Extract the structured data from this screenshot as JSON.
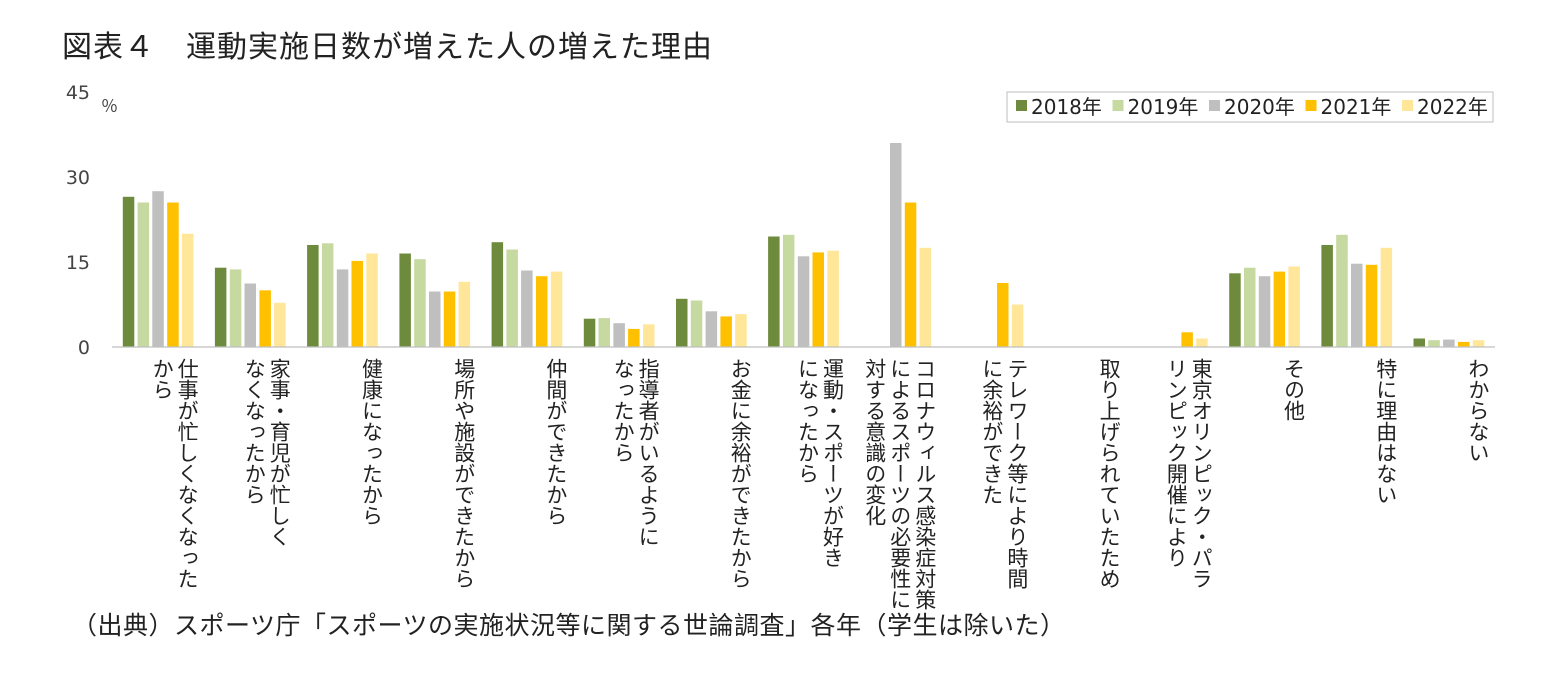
{
  "title": "図表４　運動実施日数が増えた人の増えた理由",
  "source": "（出典）スポーツ庁「スポーツの実施状況等に関する世論調査」各年（学生は除いた）",
  "chart_data": {
    "type": "bar",
    "unit": "％",
    "ylim": [
      0,
      45
    ],
    "yticks": [
      "0",
      "15",
      "30",
      "45"
    ],
    "grid": false,
    "legend_position": "top-right",
    "categories": [
      [
        "仕事が忙しくなくなった",
        "から"
      ],
      [
        "家事・育児が忙しく",
        "なくなったから"
      ],
      [
        "健康になったから"
      ],
      [
        "場所や施設ができたから"
      ],
      [
        "仲間ができたから"
      ],
      [
        "指導者がいるように",
        "なったから"
      ],
      [
        "お金に余裕ができたから"
      ],
      [
        "運動・スポーツが好き",
        "になったから"
      ],
      [
        "コロナウィルス感染症対策",
        "によるスポーツの必要性に",
        "対する意識の変化"
      ],
      [
        "テレワーク等により時間",
        "に余裕ができた"
      ],
      [
        "取り上げられていたため"
      ],
      [
        "東京オリンピック・パラ",
        "リンピック開催により"
      ],
      [
        "その他"
      ],
      [
        "特に理由はない"
      ],
      [
        "わからない"
      ]
    ],
    "series": [
      {
        "name": "2018年",
        "color": "#6e8b3d",
        "values": [
          26.5,
          14,
          18,
          16.5,
          18.5,
          5,
          8.5,
          19.5,
          null,
          null,
          null,
          null,
          13,
          18,
          1.5
        ]
      },
      {
        "name": "2019年",
        "color": "#c5d9a0",
        "values": [
          25.5,
          13.7,
          18.3,
          15.5,
          17.2,
          5.1,
          8.2,
          19.8,
          null,
          null,
          null,
          null,
          14,
          19.8,
          1.2
        ]
      },
      {
        "name": "2020年",
        "color": "#bfbfbf",
        "values": [
          27.5,
          11.2,
          13.7,
          9.8,
          13.5,
          4.2,
          6.3,
          16,
          36,
          null,
          null,
          null,
          12.5,
          14.7,
          1.3
        ]
      },
      {
        "name": "2021年",
        "color": "#ffc000",
        "values": [
          25.5,
          10,
          15.2,
          9.8,
          12.5,
          3.2,
          5.4,
          16.7,
          25.5,
          11.3,
          null,
          2.6,
          13.3,
          14.5,
          0.9
        ]
      },
      {
        "name": "2022年",
        "color": "#ffe699",
        "values": [
          20,
          7.8,
          16.5,
          11.5,
          13.3,
          4,
          5.8,
          17,
          17.5,
          7.5,
          null,
          1.5,
          14.2,
          17.5,
          1.2
        ]
      }
    ]
  }
}
